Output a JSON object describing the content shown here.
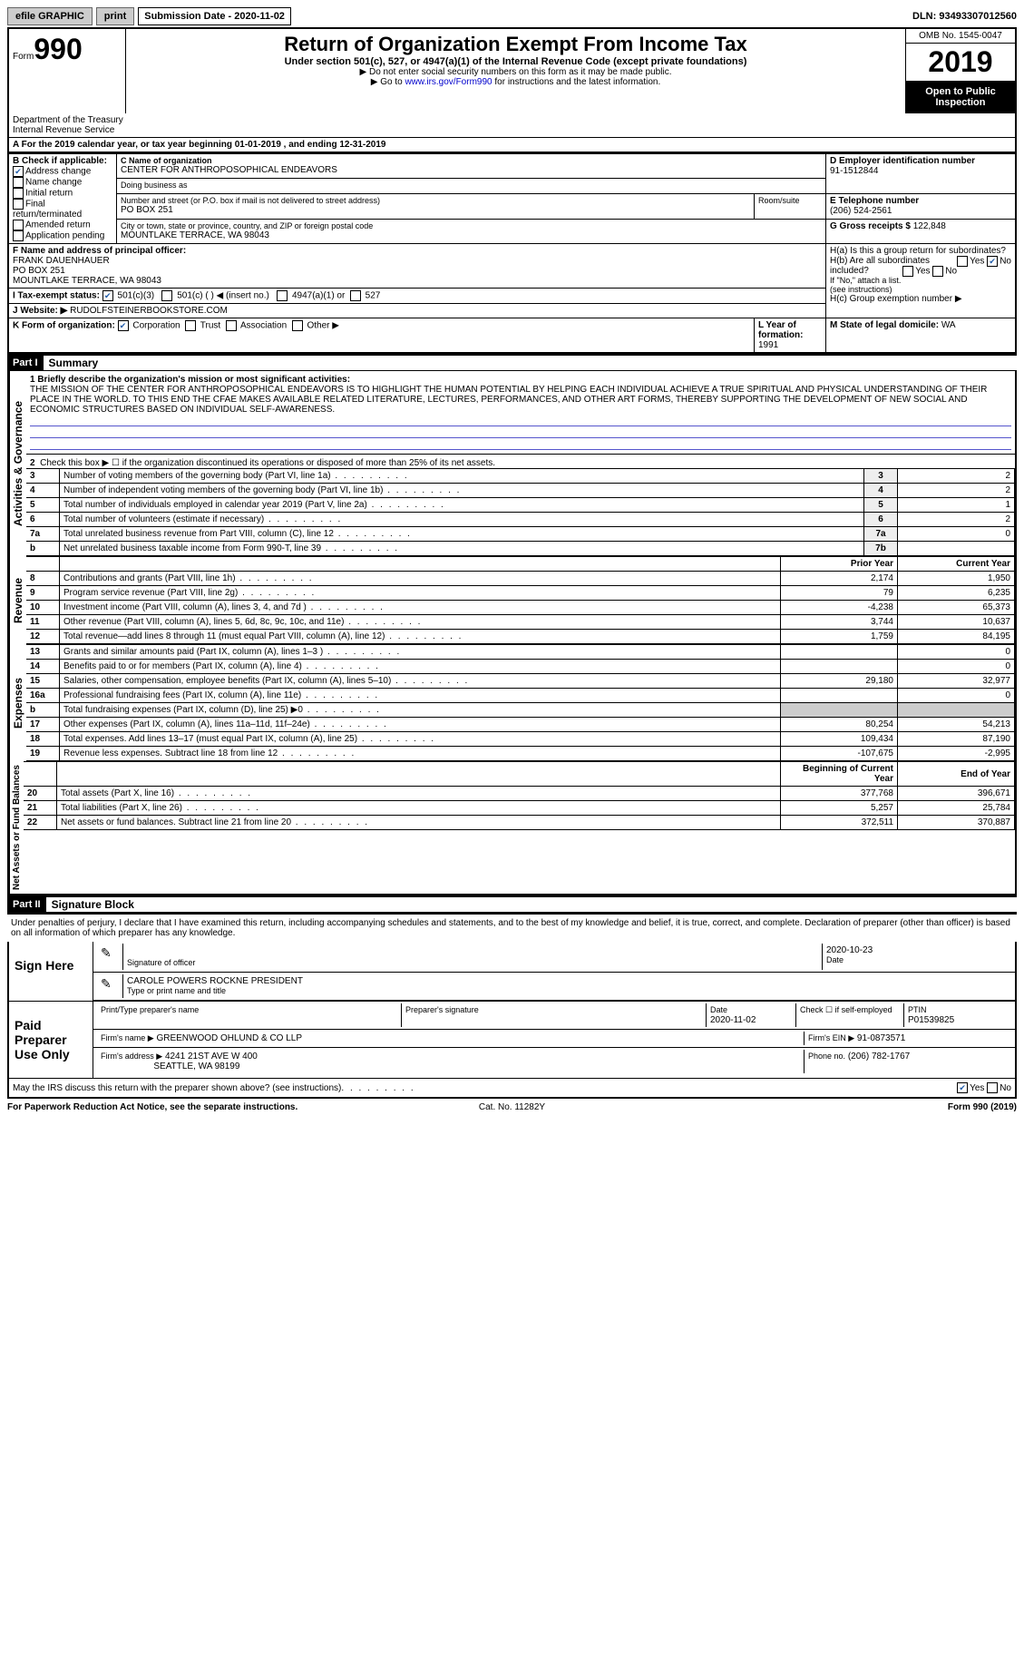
{
  "topbar": {
    "efile": "efile GRAPHIC",
    "print": "print",
    "submission": "Submission Date - 2020-11-02",
    "dln": "DLN: 93493307012560"
  },
  "header": {
    "form_word": "Form",
    "form_number": "990",
    "title": "Return of Organization Exempt From Income Tax",
    "subtitle": "Under section 501(c), 527, or 4947(a)(1) of the Internal Revenue Code (except private foundations)",
    "note1": "▶ Do not enter social security numbers on this form as it may be made public.",
    "note2_prefix": "▶ Go to ",
    "note2_link": "www.irs.gov/Form990",
    "note2_suffix": " for instructions and the latest information.",
    "omb": "OMB No. 1545-0047",
    "year": "2019",
    "open": "Open to Public Inspection",
    "dept": "Department of the Treasury\nInternal Revenue Service"
  },
  "line_a": "For the 2019 calendar year, or tax year beginning 01-01-2019   , and ending 12-31-2019",
  "sec_b": {
    "label": "B Check if applicable:",
    "addr": "Address change",
    "name": "Name change",
    "init": "Initial return",
    "final": "Final return/terminated",
    "amend": "Amended return",
    "app": "Application pending"
  },
  "sec_c": {
    "label": "C Name of organization",
    "name": "CENTER FOR ANTHROPOSOPHICAL ENDEAVORS",
    "dba": "Doing business as",
    "street_label": "Number and street (or P.O. box if mail is not delivered to street address)",
    "street": "PO BOX 251",
    "room": "Room/suite",
    "city_label": "City or town, state or province, country, and ZIP or foreign postal code",
    "city": "MOUNTLAKE TERRACE, WA  98043"
  },
  "sec_d": {
    "label": "D Employer identification number",
    "value": "91-1512844"
  },
  "sec_e": {
    "label": "E Telephone number",
    "value": "(206) 524-2561"
  },
  "sec_g": {
    "label": "G Gross receipts $",
    "value": "122,848"
  },
  "sec_f": {
    "label": "F  Name and address of principal officer:",
    "name": "FRANK DAUENHAUER",
    "street": "PO BOX 251",
    "city": "MOUNTLAKE TERRACE, WA  98043"
  },
  "sec_h": {
    "ha": "H(a)  Is this a group return for subordinates?",
    "hb": "H(b)  Are all subordinates included?",
    "hb_note": "If \"No,\" attach a list. (see instructions)",
    "hc": "H(c)  Group exemption number ▶",
    "yes": "Yes",
    "no": "No"
  },
  "sec_i": {
    "label": "I  Tax-exempt status:",
    "c3": "501(c)(3)",
    "c": "501(c) (   ) ◀ (insert no.)",
    "a1": "4947(a)(1) or",
    "s527": "527"
  },
  "sec_j": {
    "label": "J  Website: ▶",
    "value": "RUDOLFSTEINERBOOKSTORE.COM"
  },
  "sec_k": {
    "label": "K Form of organization:",
    "corp": "Corporation",
    "trust": "Trust",
    "assoc": "Association",
    "other": "Other ▶"
  },
  "sec_l": {
    "label": "L Year of formation:",
    "value": "1991"
  },
  "sec_m": {
    "label": "M State of legal domicile:",
    "value": "WA"
  },
  "part1": {
    "header": "Part I",
    "title": "Summary",
    "vert_gov": "Activities & Governance",
    "vert_rev": "Revenue",
    "vert_exp": "Expenses",
    "vert_net": "Net Assets or Fund Balances",
    "line1_label": "1  Briefly describe the organization's mission or most significant activities:",
    "mission": "THE MISSION OF THE CENTER FOR ANTHROPOSOPHICAL ENDEAVORS IS TO HIGHLIGHT THE HUMAN POTENTIAL BY HELPING EACH INDIVIDUAL ACHIEVE A TRUE SPIRITUAL AND PHYSICAL UNDERSTANDING OF THEIR PLACE IN THE WORLD. TO THIS END THE CFAE MAKES AVAILABLE RELATED LITERATURE, LECTURES, PERFORMANCES, AND OTHER ART FORMS, THEREBY SUPPORTING THE DEVELOPMENT OF NEW SOCIAL AND ECONOMIC STRUCTURES BASED ON INDIVIDUAL SELF-AWARENESS.",
    "line2": "Check this box ▶ ☐  if the organization discontinued its operations or disposed of more than 25% of its net assets.",
    "rows_gov": [
      {
        "n": "3",
        "d": "Number of voting members of the governing body (Part VI, line 1a)",
        "b": "3",
        "v": "2"
      },
      {
        "n": "4",
        "d": "Number of independent voting members of the governing body (Part VI, line 1b)",
        "b": "4",
        "v": "2"
      },
      {
        "n": "5",
        "d": "Total number of individuals employed in calendar year 2019 (Part V, line 2a)",
        "b": "5",
        "v": "1"
      },
      {
        "n": "6",
        "d": "Total number of volunteers (estimate if necessary)",
        "b": "6",
        "v": "2"
      },
      {
        "n": "7a",
        "d": "Total unrelated business revenue from Part VIII, column (C), line 12",
        "b": "7a",
        "v": "0"
      },
      {
        "n": "b",
        "d": "Net unrelated business taxable income from Form 990-T, line 39",
        "b": "7b",
        "v": ""
      }
    ],
    "col_prior": "Prior Year",
    "col_current": "Current Year",
    "rows_rev": [
      {
        "n": "8",
        "d": "Contributions and grants (Part VIII, line 1h)",
        "p": "2,174",
        "c": "1,950"
      },
      {
        "n": "9",
        "d": "Program service revenue (Part VIII, line 2g)",
        "p": "79",
        "c": "6,235"
      },
      {
        "n": "10",
        "d": "Investment income (Part VIII, column (A), lines 3, 4, and 7d )",
        "p": "-4,238",
        "c": "65,373"
      },
      {
        "n": "11",
        "d": "Other revenue (Part VIII, column (A), lines 5, 6d, 8c, 9c, 10c, and 11e)",
        "p": "3,744",
        "c": "10,637"
      },
      {
        "n": "12",
        "d": "Total revenue—add lines 8 through 11 (must equal Part VIII, column (A), line 12)",
        "p": "1,759",
        "c": "84,195"
      }
    ],
    "rows_exp": [
      {
        "n": "13",
        "d": "Grants and similar amounts paid (Part IX, column (A), lines 1–3 )",
        "p": "",
        "c": "0"
      },
      {
        "n": "14",
        "d": "Benefits paid to or for members (Part IX, column (A), line 4)",
        "p": "",
        "c": "0"
      },
      {
        "n": "15",
        "d": "Salaries, other compensation, employee benefits (Part IX, column (A), lines 5–10)",
        "p": "29,180",
        "c": "32,977"
      },
      {
        "n": "16a",
        "d": "Professional fundraising fees (Part IX, column (A), line 11e)",
        "p": "",
        "c": "0"
      },
      {
        "n": "b",
        "d": "Total fundraising expenses (Part IX, column (D), line 25) ▶0",
        "p": "shade",
        "c": "shade"
      },
      {
        "n": "17",
        "d": "Other expenses (Part IX, column (A), lines 11a–11d, 11f–24e)",
        "p": "80,254",
        "c": "54,213"
      },
      {
        "n": "18",
        "d": "Total expenses. Add lines 13–17 (must equal Part IX, column (A), line 25)",
        "p": "109,434",
        "c": "87,190"
      },
      {
        "n": "19",
        "d": "Revenue less expenses. Subtract line 18 from line 12",
        "p": "-107,675",
        "c": "-2,995"
      }
    ],
    "col_boy": "Beginning of Current Year",
    "col_eoy": "End of Year",
    "rows_net": [
      {
        "n": "20",
        "d": "Total assets (Part X, line 16)",
        "p": "377,768",
        "c": "396,671"
      },
      {
        "n": "21",
        "d": "Total liabilities (Part X, line 26)",
        "p": "5,257",
        "c": "25,784"
      },
      {
        "n": "22",
        "d": "Net assets or fund balances. Subtract line 21 from line 20",
        "p": "372,511",
        "c": "370,887"
      }
    ]
  },
  "part2": {
    "header": "Part II",
    "title": "Signature Block",
    "penalties": "Under penalties of perjury, I declare that I have examined this return, including accompanying schedules and statements, and to the best of my knowledge and belief, it is true, correct, and complete. Declaration of preparer (other than officer) is based on all information of which preparer has any knowledge.",
    "sign_here": "Sign Here",
    "sig_officer": "Signature of officer",
    "sig_date": "2020-10-23",
    "name_title": "CAROLE POWERS ROCKNE  PRESIDENT",
    "name_title_label": "Type or print name and title",
    "date_label": "Date",
    "paid": "Paid Preparer Use Only",
    "prep_name_label": "Print/Type preparer's name",
    "prep_sig_label": "Preparer's signature",
    "prep_date": "2020-11-02",
    "check_self": "Check ☐ if self-employed",
    "ptin_label": "PTIN",
    "ptin": "P01539825",
    "firm_name_label": "Firm's name    ▶",
    "firm_name": "GREENWOOD OHLUND & CO LLP",
    "firm_ein_label": "Firm's EIN ▶",
    "firm_ein": "91-0873571",
    "firm_addr_label": "Firm's address ▶",
    "firm_addr1": "4241 21ST AVE W 400",
    "firm_addr2": "SEATTLE, WA  98199",
    "phone_label": "Phone no.",
    "phone": "(206) 782-1767",
    "may_discuss": "May the IRS discuss this return with the preparer shown above? (see instructions)"
  },
  "footer": {
    "left": "For Paperwork Reduction Act Notice, see the separate instructions.",
    "mid": "Cat. No. 11282Y",
    "right": "Form 990 (2019)"
  }
}
